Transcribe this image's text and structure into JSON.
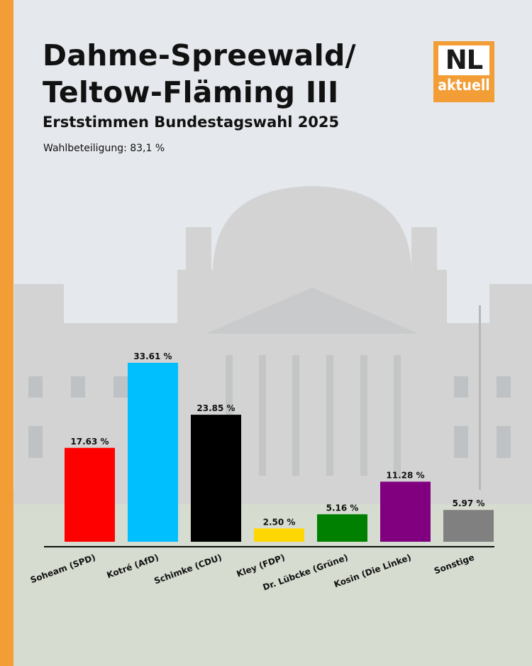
{
  "header": {
    "title_line1": "Dahme-Spreewald/",
    "title_line2": "Teltow-Fläming III",
    "subtitle": "Erststimmen Bundestagswahl 2025",
    "turnout": "Wahlbeteiligung: 83,1 %"
  },
  "logo": {
    "top": "NL",
    "bottom": "aktuell"
  },
  "colors": {
    "stripe": "#f29d35",
    "logo": "#f29d35"
  },
  "chart_data": {
    "type": "bar",
    "title": "",
    "xlabel": "",
    "ylabel": "",
    "ylim": [
      0,
      35
    ],
    "grid": false,
    "categories": [
      "Soheam (SPD)",
      "Kotré (AfD)",
      "Schimke (CDU)",
      "Kley (FDP)",
      "Dr. Lübcke (Grüne)",
      "Kosin (Die Linke)",
      "Sonstige"
    ],
    "values": [
      17.63,
      33.61,
      23.85,
      2.5,
      5.16,
      11.28,
      5.97
    ],
    "value_labels": [
      "17.63 %",
      "33.61 %",
      "23.85 %",
      "2.50 %",
      "5.16 %",
      "11.28 %",
      "5.97 %"
    ],
    "colors": [
      "#ff0000",
      "#00bfff",
      "#000000",
      "#ffd700",
      "#008000",
      "#800080",
      "#808080"
    ]
  }
}
